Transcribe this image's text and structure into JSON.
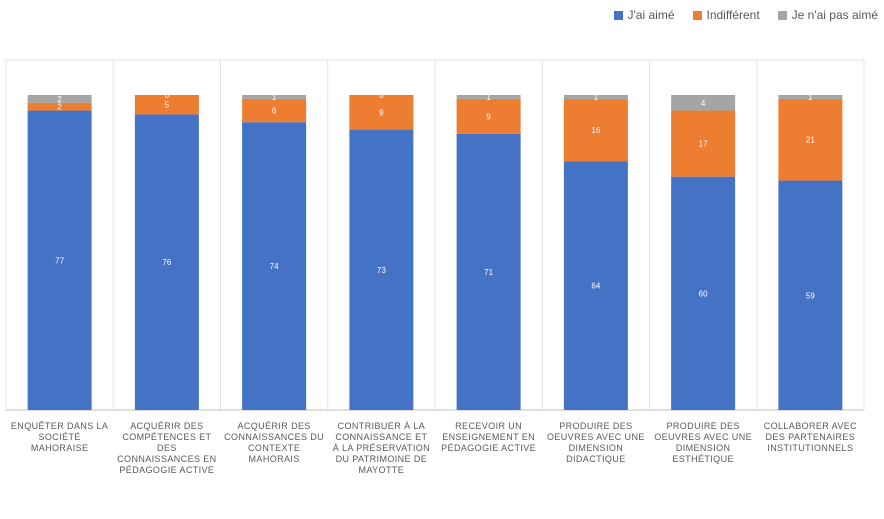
{
  "chart_data": {
    "type": "bar",
    "stacked": true,
    "categories": [
      "ENQUÊTER DANS LA SOCIÉTÉ MAHORAISE",
      "ACQUÉRIR DES COMPÉTENCES ET DES CONNAISSANCES EN PÉDAGOGIE ACTIVE",
      "ACQUÉRIR DES CONNAISSANCES DU CONTEXTE MAHORAIS",
      "CONTRIBUER À LA CONNAISSANCE ET À LA PRÉSERVATION DU PATRIMOINE DE MAYOTTE",
      "RECEVOIR UN ENSEIGNEMENT EN PÉDAGOGIE ACTIVE",
      "PRODUIRE DES OEUVRES AVEC UNE DIMENSION DIDACTIQUE",
      "PRODUIRE DES OEUVRES AVEC UNE DIMENSION ESTHÉTIQUE",
      "COLLABORER AVEC DES PARTENAIRES INSTITUTIONNELS"
    ],
    "series": [
      {
        "name": "J'ai aimé",
        "values": [
          77,
          76,
          74,
          73,
          71,
          64,
          60,
          59
        ],
        "color": "#4472C4"
      },
      {
        "name": "Indifférent",
        "values": [
          2,
          5,
          6,
          9,
          9,
          16,
          17,
          21
        ],
        "color": "#ED7D31"
      },
      {
        "name": "Je n'ai pas aimé",
        "values": [
          2,
          0,
          1,
          0,
          1,
          1,
          4,
          1
        ],
        "color": "#A5A5A5"
      }
    ],
    "value_labels": [
      [
        "77",
        "76",
        "74",
        "73",
        "71",
        "64",
        "60",
        "59"
      ],
      [
        "2",
        "5",
        "6",
        "9",
        "9",
        "16",
        "17",
        "21"
      ],
      [
        "2",
        "0",
        "1",
        "0",
        "1",
        "1",
        "4",
        "1"
      ]
    ],
    "grid": false,
    "legend_position": "top-right"
  }
}
